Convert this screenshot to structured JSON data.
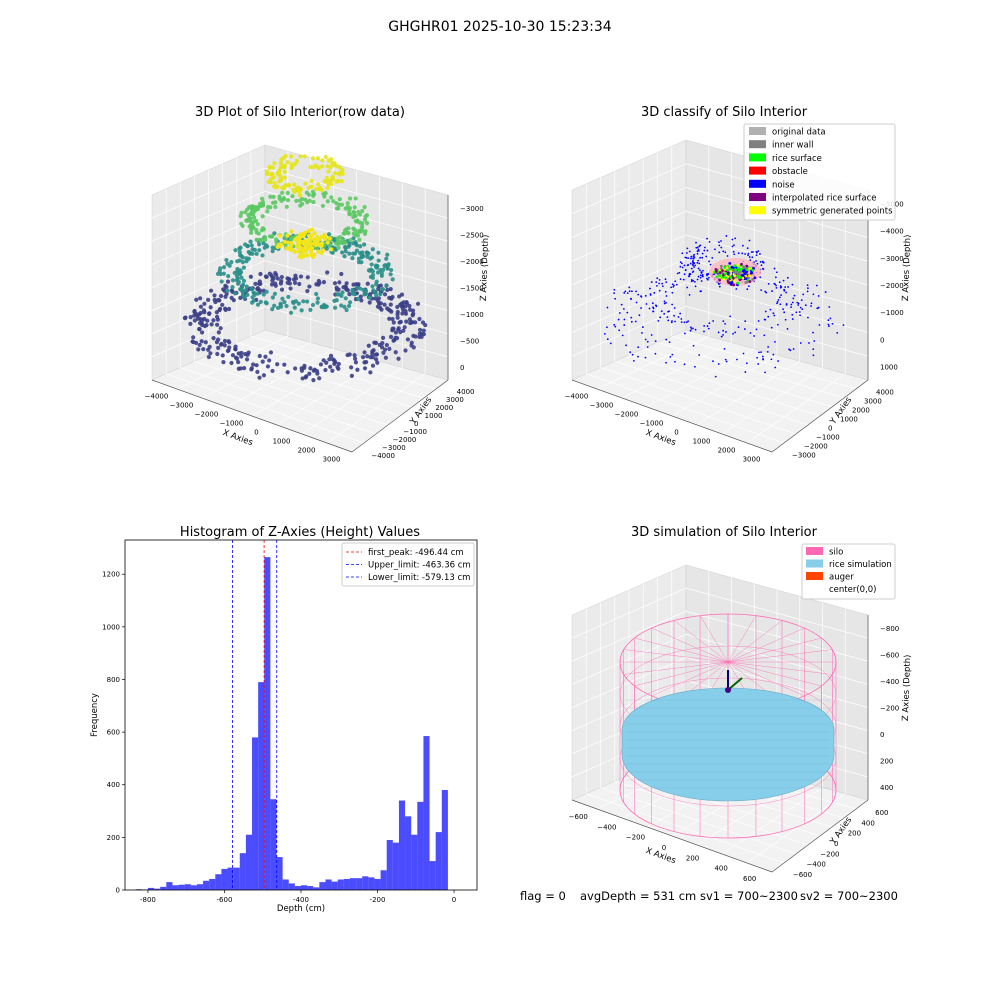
{
  "figure": {
    "title": "GHGHR01 2025-10-30 15:23:34",
    "footer": {
      "flag": "flag = 0",
      "avg_depth": "avgDepth = 531 cm",
      "sv1": "sv1 = 700~2300",
      "sv2": "sv2 = 700~2300"
    }
  },
  "chart_data": [
    {
      "type": "scatter",
      "title": "3D Plot of Silo Interior(row data)",
      "xlabel": "X Axies",
      "ylabel": "Y Axies",
      "zlabel": "Z Axies (Depth)",
      "x_ticks": [
        "−4000",
        "−3000",
        "−2000",
        "−1000",
        "0",
        "1000",
        "2000",
        "3000"
      ],
      "y_ticks": [
        "−4000",
        "−3000",
        "−2000",
        "−1000",
        "0",
        "1000",
        "2000",
        "3000",
        "4000"
      ],
      "z_ticks": [
        "0",
        "−500",
        "−1000",
        "−1500",
        "−2000",
        "−2500",
        "−3000"
      ],
      "colormap": "viridis",
      "point_count_estimate": 1300,
      "rings": [
        {
          "radius": 4000,
          "z": -3200,
          "color": "#3b3f86"
        },
        {
          "radius": 2700,
          "z": -2200,
          "color": "#2a8f8a"
        },
        {
          "radius": 1800,
          "z": -1200,
          "color": "#5cc863"
        },
        {
          "radius": 700,
          "z": -300,
          "color": "#e6e419"
        }
      ]
    },
    {
      "type": "scatter",
      "title": "3D classify of Silo Interior",
      "xlabel": "X Axies",
      "ylabel": "Y Axies",
      "zlabel": "Z Axies (Depth)",
      "x_ticks": [
        "−4000",
        "−3000",
        "−2000",
        "−1000",
        "0",
        "1000",
        "2000",
        "3000"
      ],
      "y_ticks": [
        "−3000",
        "−2000",
        "−1000",
        "0",
        "1000",
        "2000",
        "3000",
        "4000"
      ],
      "z_ticks": [
        "1000",
        "0",
        "−1000",
        "−2000",
        "−3000",
        "−4000",
        "−5000"
      ],
      "legend": [
        {
          "label": "original data",
          "color": "#b0b0b0"
        },
        {
          "label": "inner wall",
          "color": "#808080"
        },
        {
          "label": "rice surface",
          "color": "#00ff00"
        },
        {
          "label": "obstacle",
          "color": "#ff0000"
        },
        {
          "label": "noise",
          "color": "#0000ff"
        },
        {
          "label": "interpolated rice surface",
          "color": "#800080"
        },
        {
          "label": "symmetric generated points",
          "color": "#ffff00"
        }
      ],
      "legend_placement": "top-right"
    },
    {
      "type": "bar",
      "title": "Histogram of Z-Axies (Height) Values",
      "xlabel": "Depth (cm)",
      "ylabel": "Frequency",
      "xlim": [
        -860,
        60
      ],
      "ylim": [
        0,
        1330
      ],
      "x_ticks": [
        -800,
        -600,
        -400,
        -200,
        0
      ],
      "y_ticks": [
        0,
        200,
        400,
        600,
        800,
        1000,
        1200
      ],
      "bar_color": "#0000ff",
      "bin_width": 16,
      "bins": [
        {
          "x": -824,
          "y": 3
        },
        {
          "x": -808,
          "y": 2
        },
        {
          "x": -792,
          "y": 8
        },
        {
          "x": -776,
          "y": 5
        },
        {
          "x": -760,
          "y": 12
        },
        {
          "x": -744,
          "y": 30
        },
        {
          "x": -728,
          "y": 18
        },
        {
          "x": -712,
          "y": 20
        },
        {
          "x": -696,
          "y": 22
        },
        {
          "x": -680,
          "y": 18
        },
        {
          "x": -664,
          "y": 22
        },
        {
          "x": -648,
          "y": 35
        },
        {
          "x": -632,
          "y": 42
        },
        {
          "x": -616,
          "y": 60
        },
        {
          "x": -600,
          "y": 80
        },
        {
          "x": -584,
          "y": 85
        },
        {
          "x": -568,
          "y": 85
        },
        {
          "x": -552,
          "y": 140
        },
        {
          "x": -536,
          "y": 210
        },
        {
          "x": -520,
          "y": 580
        },
        {
          "x": -504,
          "y": 790
        },
        {
          "x": -488,
          "y": 1265
        },
        {
          "x": -472,
          "y": 345
        },
        {
          "x": -456,
          "y": 125
        },
        {
          "x": -440,
          "y": 40
        },
        {
          "x": -424,
          "y": 25
        },
        {
          "x": -408,
          "y": 15
        },
        {
          "x": -392,
          "y": 18
        },
        {
          "x": -376,
          "y": 15
        },
        {
          "x": -360,
          "y": 10
        },
        {
          "x": -344,
          "y": 30
        },
        {
          "x": -328,
          "y": 40
        },
        {
          "x": -312,
          "y": 32
        },
        {
          "x": -296,
          "y": 40
        },
        {
          "x": -280,
          "y": 42
        },
        {
          "x": -264,
          "y": 45
        },
        {
          "x": -248,
          "y": 45
        },
        {
          "x": -232,
          "y": 52
        },
        {
          "x": -216,
          "y": 48
        },
        {
          "x": -200,
          "y": 42
        },
        {
          "x": -184,
          "y": 75
        },
        {
          "x": -168,
          "y": 190
        },
        {
          "x": -152,
          "y": 180
        },
        {
          "x": -136,
          "y": 340
        },
        {
          "x": -120,
          "y": 280
        },
        {
          "x": -104,
          "y": 210
        },
        {
          "x": -88,
          "y": 335
        },
        {
          "x": -72,
          "y": 585
        },
        {
          "x": -56,
          "y": 110
        },
        {
          "x": -40,
          "y": 220
        },
        {
          "x": -24,
          "y": 380
        }
      ],
      "vlines": [
        {
          "label": "first_peak: -496.44 cm",
          "x": -496.44,
          "color": "#ff0000"
        },
        {
          "label": "Upper_limit: -463.36 cm",
          "x": -463.36,
          "color": "#0000ff"
        },
        {
          "label": "Lower_limit: -579.13 cm",
          "x": -579.13,
          "color": "#0000ff"
        }
      ],
      "legend_placement": "top-right"
    },
    {
      "type": "scatter",
      "title": "3D simulation of Silo Interior",
      "xlabel": "X Axies",
      "ylabel": "Y Axies",
      "zlabel": "Z Axies (Depth)",
      "x_ticks": [
        "−600",
        "−400",
        "−200",
        "0",
        "200",
        "400",
        "600"
      ],
      "y_ticks": [
        "−600",
        "−400",
        "−200",
        "0",
        "200",
        "400",
        "600"
      ],
      "z_ticks": [
        "400",
        "200",
        "0",
        "−200",
        "−400",
        "−600",
        "−800"
      ],
      "legend": [
        {
          "label": "silo",
          "color": "#ff69b4"
        },
        {
          "label": "rice simulation",
          "color": "#87ceeb"
        },
        {
          "label": "auger",
          "color": "#ff4500"
        },
        {
          "label": "center(0,0)",
          "color": "#ffffff"
        }
      ],
      "legend_placement": "top-right"
    }
  ]
}
